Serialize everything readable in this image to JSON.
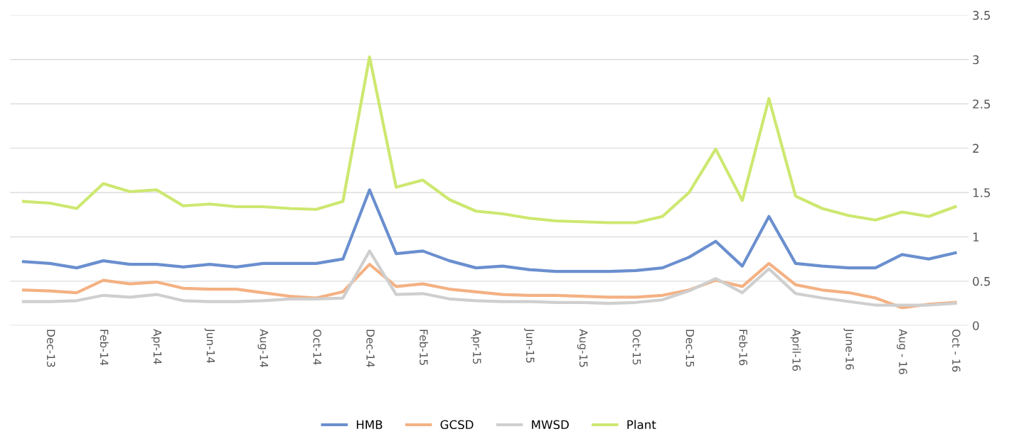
{
  "chart_data": {
    "type": "line",
    "categories": [
      null,
      "Dec-13",
      null,
      "Feb-14",
      null,
      "Apr-14",
      null,
      "Jun-14",
      null,
      "Aug-14",
      null,
      "Oct-14",
      null,
      "Dec-14",
      null,
      "Feb-15",
      null,
      "Apr-15",
      null,
      "Jun-15",
      null,
      "Aug-15",
      null,
      "Oct-15",
      null,
      "Dec-15",
      null,
      "Feb-16",
      null,
      "April-16",
      null,
      "June-16",
      null,
      "Aug - 16",
      null,
      "Oct - 16"
    ],
    "series": [
      {
        "name": "HMB",
        "color": "#6a8fcf",
        "values": [
          0.72,
          0.7,
          0.65,
          0.73,
          0.69,
          0.69,
          0.66,
          0.69,
          0.66,
          0.7,
          0.7,
          0.7,
          0.75,
          1.53,
          0.81,
          0.84,
          0.73,
          0.65,
          0.67,
          0.63,
          0.61,
          0.61,
          0.61,
          0.62,
          0.65,
          0.77,
          0.95,
          0.67,
          1.23,
          0.7,
          0.67,
          0.65,
          0.65,
          0.8,
          0.75,
          0.82
        ]
      },
      {
        "name": "GCSD",
        "color": "#f4b183",
        "values": [
          0.4,
          0.39,
          0.37,
          0.51,
          0.47,
          0.49,
          0.42,
          0.41,
          0.41,
          0.37,
          0.33,
          0.31,
          0.38,
          0.69,
          0.44,
          0.47,
          0.41,
          0.38,
          0.35,
          0.34,
          0.34,
          0.33,
          0.32,
          0.32,
          0.34,
          0.4,
          0.51,
          0.44,
          0.7,
          0.46,
          0.4,
          0.37,
          0.31,
          0.2,
          0.24,
          0.26
        ]
      },
      {
        "name": "MWSD",
        "color": "#cfcfcf",
        "values": [
          0.27,
          0.27,
          0.28,
          0.34,
          0.32,
          0.35,
          0.28,
          0.27,
          0.27,
          0.28,
          0.3,
          0.3,
          0.31,
          0.84,
          0.35,
          0.36,
          0.3,
          0.28,
          0.27,
          0.27,
          0.26,
          0.26,
          0.25,
          0.26,
          0.29,
          0.39,
          0.53,
          0.37,
          0.64,
          0.36,
          0.31,
          0.27,
          0.23,
          0.23,
          0.23,
          0.25
        ]
      },
      {
        "name": "Plant",
        "color": "#cde870",
        "values": [
          1.4,
          1.38,
          1.32,
          1.6,
          1.51,
          1.53,
          1.35,
          1.37,
          1.34,
          1.34,
          1.32,
          1.31,
          1.4,
          3.03,
          1.56,
          1.64,
          1.42,
          1.29,
          1.26,
          1.21,
          1.18,
          1.17,
          1.16,
          1.16,
          1.23,
          1.5,
          1.99,
          1.41,
          2.56,
          1.46,
          1.32,
          1.24,
          1.19,
          1.28,
          1.23,
          1.34
        ]
      }
    ],
    "ylim": [
      0,
      3.5
    ],
    "yticks": [
      0,
      0.5,
      1,
      1.5,
      2,
      2.5,
      3,
      3.5
    ],
    "grid": "y",
    "legend": "bottom",
    "marker": "none",
    "line_style": "solid"
  }
}
